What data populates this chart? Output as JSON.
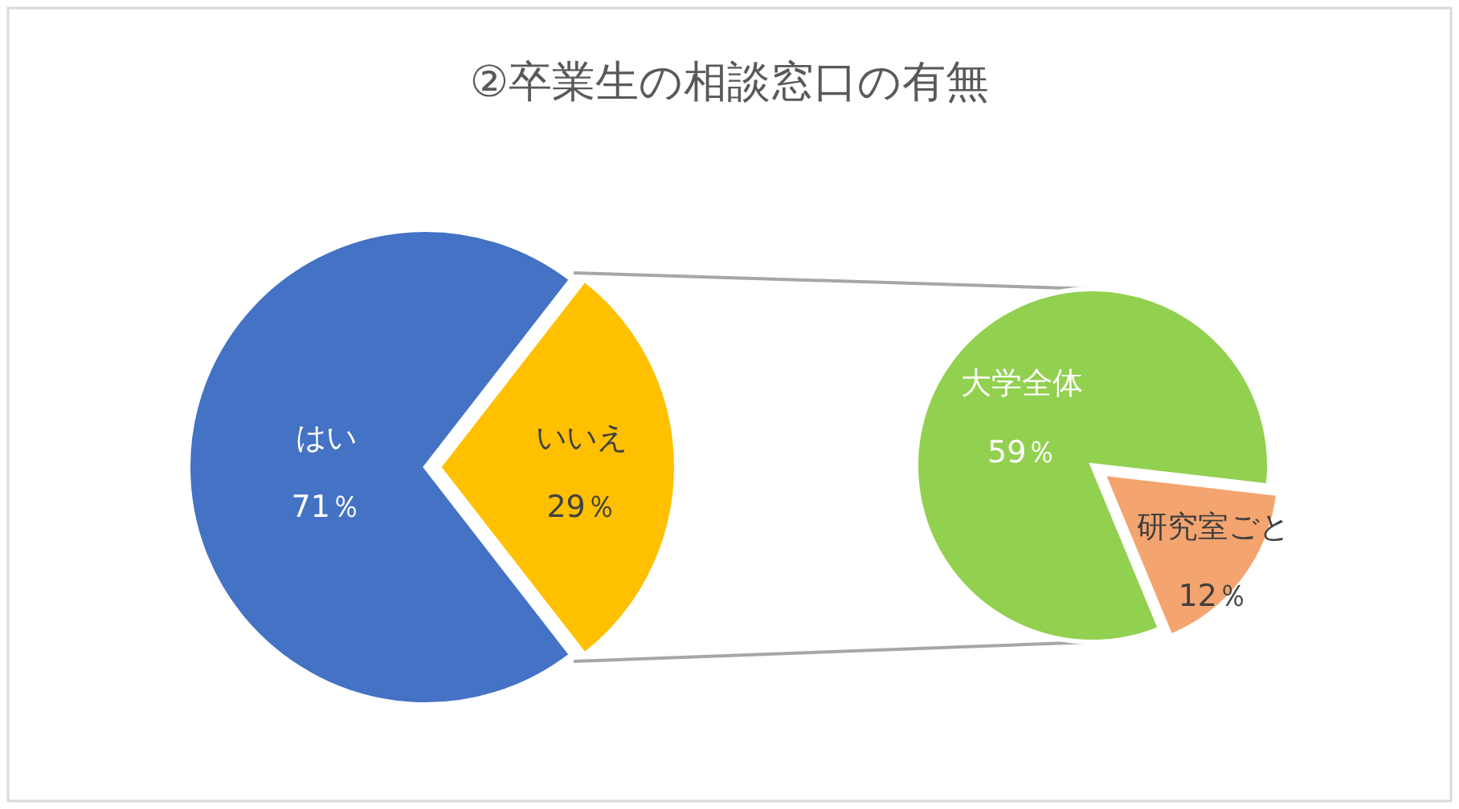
{
  "chart_data": [
    {
      "type": "pie",
      "title": "②卒業生の相談窓口の有無",
      "categories": [
        "はい",
        "いいえ"
      ],
      "values": [
        71,
        29
      ],
      "colors": [
        "#4472c4",
        "#ffc000"
      ],
      "value_labels": [
        "71％",
        "29％"
      ]
    },
    {
      "type": "pie",
      "categories": [
        "大学全体",
        "研究室ごと"
      ],
      "values": [
        59,
        12
      ],
      "colors": [
        "#92d050",
        "#f4a46f"
      ],
      "value_labels": [
        "59％",
        "12％"
      ]
    }
  ]
}
